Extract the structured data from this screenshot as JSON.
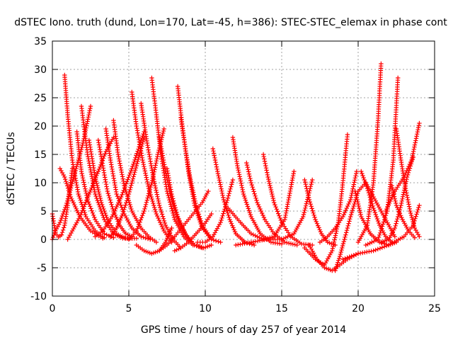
{
  "chart_data": {
    "type": "scatter",
    "title": "dSTEC Iono. truth (dund, Lon=170, Lat=-45, h=386): STEC-STEC_elemax in phase cont",
    "xlabel": "GPS time / hours of day 257 of year 2014",
    "ylabel": "dSTEC  / TECUs",
    "xlim": [
      0,
      25
    ],
    "ylim": [
      -10,
      35
    ],
    "xticks": [
      0,
      5,
      10,
      15,
      20,
      25
    ],
    "yticks": [
      -10,
      -5,
      0,
      5,
      10,
      15,
      20,
      25,
      30,
      35
    ],
    "grid": true,
    "marker": "+",
    "series_color": "#ff0000",
    "series": [
      {
        "x": [
          0.0,
          0.2,
          0.4,
          0.6,
          0.8,
          1.0,
          1.3
        ],
        "y": [
          4.5,
          1.2,
          0.4,
          0.8,
          2.5,
          6.0,
          12.5
        ]
      },
      {
        "x": [
          0.0,
          0.2,
          0.5,
          0.9,
          1.4,
          2.0,
          2.5
        ],
        "y": [
          0.0,
          1.5,
          3.0,
          6.0,
          11.0,
          17.0,
          23.5
        ]
      },
      {
        "x": [
          0.5,
          0.8,
          1.2,
          1.8,
          2.5,
          3.3
        ],
        "y": [
          12.5,
          11.0,
          7.5,
          4.0,
          1.5,
          0.2
        ]
      },
      {
        "x": [
          0.8,
          1.0,
          1.3,
          1.7,
          2.2,
          2.8,
          3.4
        ],
        "y": [
          29.0,
          22.0,
          14.0,
          8.0,
          4.0,
          1.5,
          0.3
        ]
      },
      {
        "x": [
          1.0,
          1.3,
          1.8,
          2.4,
          3.0,
          3.5,
          4.0
        ],
        "y": [
          0.0,
          1.5,
          4.0,
          8.0,
          12.0,
          15.5,
          18.0
        ]
      },
      {
        "x": [
          1.6,
          1.9,
          2.3,
          2.8,
          3.4,
          4.0
        ],
        "y": [
          19.0,
          12.0,
          7.0,
          3.5,
          1.0,
          0.3
        ]
      },
      {
        "x": [
          1.9,
          2.3,
          2.8,
          3.4,
          4.0,
          4.6,
          5.2
        ],
        "y": [
          23.5,
          15.0,
          8.0,
          3.5,
          1.0,
          0.2,
          0.2
        ]
      },
      {
        "x": [
          2.4,
          2.8,
          3.2,
          3.6,
          4.2,
          4.8,
          5.5
        ],
        "y": [
          17.5,
          11.0,
          6.5,
          3.5,
          1.0,
          0.2,
          0.2
        ]
      },
      {
        "x": [
          2.8,
          3.3,
          3.9,
          4.5,
          5.2,
          6.0
        ],
        "y": [
          0.5,
          1.5,
          4.0,
          7.5,
          12.5,
          19.0
        ]
      },
      {
        "x": [
          3.0,
          3.3,
          3.6,
          4.0,
          4.4,
          4.8,
          5.2
        ],
        "y": [
          17.5,
          13.0,
          8.5,
          5.0,
          2.5,
          1.0,
          0.5
        ]
      },
      {
        "x": [
          3.5,
          3.8,
          4.2,
          4.7,
          5.2,
          5.8,
          6.4
        ],
        "y": [
          19.5,
          14.0,
          8.0,
          4.5,
          2.0,
          0.5,
          0.0
        ]
      },
      {
        "x": [
          4.0,
          4.3,
          4.7,
          5.2,
          5.8,
          6.3,
          6.8
        ],
        "y": [
          21.0,
          15.0,
          9.5,
          5.0,
          2.0,
          0.5,
          -0.5
        ]
      },
      {
        "x": [
          3.8,
          4.2,
          4.6,
          5.0,
          5.5,
          6.0
        ],
        "y": [
          0.5,
          2.0,
          4.5,
          8.0,
          13.0,
          18.0
        ]
      },
      {
        "x": [
          5.2,
          5.5,
          5.9,
          6.3,
          6.8,
          7.3,
          7.8
        ],
        "y": [
          26.0,
          20.0,
          14.0,
          9.0,
          4.5,
          1.5,
          -0.5
        ]
      },
      {
        "x": [
          5.8,
          6.2,
          6.6,
          7.0,
          7.4,
          7.9,
          8.4
        ],
        "y": [
          24.0,
          17.0,
          11.0,
          6.0,
          2.5,
          0.0,
          -1.5
        ]
      },
      {
        "x": [
          5.0,
          5.5,
          6.0,
          6.5,
          6.9,
          7.3
        ],
        "y": [
          0.0,
          1.5,
          5.0,
          10.0,
          15.0,
          19.5
        ]
      },
      {
        "x": [
          6.5,
          6.8,
          7.1,
          7.5,
          8.0,
          8.6,
          9.2
        ],
        "y": [
          28.5,
          22.0,
          15.0,
          8.5,
          3.5,
          0.5,
          -1.0
        ]
      },
      {
        "x": [
          7.0,
          7.4,
          7.8,
          8.3,
          8.8,
          9.3,
          9.8
        ],
        "y": [
          18.0,
          12.0,
          7.0,
          3.0,
          0.5,
          -1.0,
          -1.5
        ]
      },
      {
        "x": [
          5.5,
          6.0,
          6.5,
          7.0,
          7.4,
          7.8
        ],
        "y": [
          -1.0,
          -2.0,
          -2.5,
          -2.0,
          -0.5,
          2.0
        ]
      },
      {
        "x": [
          7.5,
          7.8,
          8.2,
          8.7,
          9.3,
          9.9,
          10.4
        ],
        "y": [
          12.5,
          8.0,
          4.0,
          1.0,
          -1.0,
          -1.5,
          -1.0
        ]
      },
      {
        "x": [
          8.2,
          8.5,
          8.9,
          9.3,
          9.8,
          10.4,
          11.0
        ],
        "y": [
          27.0,
          20.0,
          12.0,
          6.0,
          2.0,
          0.0,
          -0.5
        ]
      },
      {
        "x": [
          8.4,
          8.7,
          9.0,
          9.4,
          9.8,
          10.3
        ],
        "y": [
          21.5,
          16.0,
          11.0,
          6.0,
          2.5,
          0.5
        ]
      },
      {
        "x": [
          7.0,
          7.5,
          8.0,
          8.6,
          9.2,
          9.8,
          10.2
        ],
        "y": [
          -2.0,
          -1.0,
          0.5,
          2.5,
          4.5,
          6.5,
          8.5
        ]
      },
      {
        "x": [
          8.0,
          8.4,
          8.9,
          9.4,
          9.9,
          10.4
        ],
        "y": [
          -2.0,
          -1.5,
          -0.5,
          1.0,
          2.5,
          4.5
        ]
      },
      {
        "x": [
          10.5,
          10.8,
          11.2,
          11.6,
          12.0,
          12.6,
          13.2
        ],
        "y": [
          16.0,
          12.0,
          7.0,
          3.5,
          1.0,
          -0.5,
          -1.0
        ]
      },
      {
        "x": [
          9.5,
          10.0,
          10.5,
          11.0,
          11.4,
          11.8
        ],
        "y": [
          -0.5,
          -0.5,
          0.5,
          3.0,
          6.5,
          10.5
        ]
      },
      {
        "x": [
          11.8,
          12.1,
          12.5,
          13.0,
          13.6,
          14.3,
          15.0
        ],
        "y": [
          18.0,
          13.0,
          8.0,
          4.0,
          1.0,
          -0.5,
          -0.8
        ]
      },
      {
        "x": [
          12.7,
          13.0,
          13.4,
          13.9,
          14.5,
          15.2,
          16.0
        ],
        "y": [
          13.5,
          10.0,
          6.5,
          3.5,
          1.0,
          -0.5,
          -1.0
        ]
      },
      {
        "x": [
          13.8,
          14.1,
          14.5,
          15.0,
          15.6,
          16.3,
          17.0
        ],
        "y": [
          15.0,
          11.0,
          6.5,
          3.0,
          0.5,
          -0.8,
          -1.0
        ]
      },
      {
        "x": [
          11.5,
          12.3,
          13.0,
          13.8,
          14.5,
          15.2,
          15.8
        ],
        "y": [
          5.5,
          3.0,
          1.0,
          0.0,
          0.5,
          3.5,
          12.0
        ]
      },
      {
        "x": [
          12.0,
          13.0,
          14.0,
          15.0,
          15.8,
          16.4,
          17.0
        ],
        "y": [
          -1.0,
          -0.5,
          0.0,
          0.0,
          1.0,
          4.0,
          10.5
        ]
      },
      {
        "x": [
          16.5,
          16.8,
          17.2,
          17.6,
          18.0,
          18.5
        ],
        "y": [
          10.5,
          7.0,
          3.5,
          1.0,
          -0.5,
          -1.0
        ]
      },
      {
        "x": [
          16.8,
          17.3,
          17.8,
          18.3,
          18.8,
          19.3,
          20.0
        ],
        "y": [
          -1.0,
          -3.5,
          -5.0,
          -5.5,
          -4.5,
          -3.5,
          -2.5
        ]
      },
      {
        "x": [
          18.5,
          18.8,
          19.1,
          19.5,
          20.0,
          20.5,
          21.5,
          22.4
        ],
        "y": [
          -5.5,
          -3.0,
          0.0,
          4.0,
          8.5,
          10.0,
          5.0,
          0.5
        ]
      },
      {
        "x": [
          16.5,
          17.2,
          17.8,
          18.3,
          18.7,
          19.0,
          19.3
        ],
        "y": [
          -1.5,
          -3.5,
          -4.5,
          -2.0,
          3.0,
          10.0,
          18.5
        ]
      },
      {
        "x": [
          17.5,
          18.0,
          18.5,
          19.0,
          19.5,
          19.9
        ],
        "y": [
          -0.5,
          0.5,
          2.0,
          4.0,
          7.0,
          12.0
        ]
      },
      {
        "x": [
          19.8,
          20.2,
          20.8,
          21.4,
          22.0,
          22.5
        ],
        "y": [
          8.5,
          4.0,
          1.0,
          -0.5,
          -1.0,
          -0.5
        ]
      },
      {
        "x": [
          20.2,
          20.6,
          21.0,
          21.4,
          21.8,
          22.2
        ],
        "y": [
          12.0,
          9.0,
          5.5,
          2.5,
          0.5,
          -0.5
        ]
      },
      {
        "x": [
          20.0,
          20.6,
          21.0,
          21.3,
          21.5
        ],
        "y": [
          -0.5,
          2.5,
          10.0,
          21.0,
          31.0
        ]
      },
      {
        "x": [
          20.5,
          21.3,
          21.9,
          22.3,
          22.6
        ],
        "y": [
          -1.0,
          0.0,
          5.0,
          14.0,
          28.5
        ]
      },
      {
        "x": [
          21.5,
          22.0,
          22.4,
          22.8,
          23.2,
          23.6
        ],
        "y": [
          -0.5,
          0.0,
          2.0,
          6.0,
          11.0,
          14.5
        ]
      },
      {
        "x": [
          21.8,
          22.4,
          23.0,
          23.5,
          24.0
        ],
        "y": [
          5.0,
          8.5,
          11.0,
          14.0,
          20.5
        ]
      },
      {
        "x": [
          22.2,
          22.5,
          22.9,
          23.3,
          23.7
        ],
        "y": [
          9.5,
          6.0,
          3.5,
          1.5,
          0.3
        ]
      },
      {
        "x": [
          22.5,
          22.8,
          23.1,
          23.4,
          23.7,
          24.0
        ],
        "y": [
          19.5,
          14.0,
          9.0,
          5.0,
          2.0,
          0.5
        ]
      },
      {
        "x": [
          19.0,
          20.0,
          21.0,
          22.0,
          23.0,
          23.6,
          24.0
        ],
        "y": [
          -3.5,
          -2.5,
          -2.0,
          -1.0,
          0.5,
          2.5,
          6.0
        ]
      }
    ]
  }
}
